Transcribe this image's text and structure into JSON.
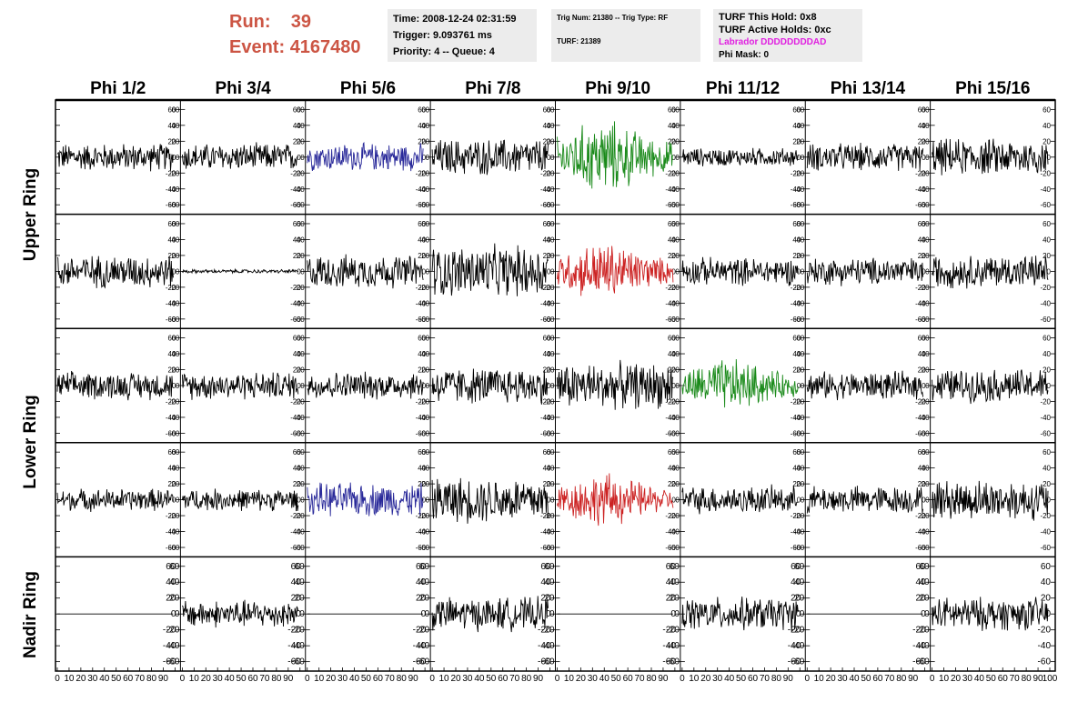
{
  "header": {
    "run_label": "Run:",
    "run_value": "39",
    "event_label": "Event:",
    "event_value": "4167480",
    "time_text": "Time: 2008-12-24 02:31:59",
    "trigger_text": "Trigger: 9.093761 ms",
    "priority_text": "Priority: 4 -- Queue: 4",
    "trig_num_text": "Trig Num: 21380 -- Trig Type: RF",
    "turf_text": "TURF: 21389",
    "turf_hold_text": "TURF This Hold: 0x8",
    "turf_active_text": "TURF Active Holds: 0xc",
    "labrador_text": "Labrador DDDDDDDDAD",
    "phi_mask_text": "Phi Mask: 0"
  },
  "columns": [
    "Phi 1/2",
    "Phi 3/4",
    "Phi 5/6",
    "Phi 7/8",
    "Phi 9/10",
    "Phi 11/12",
    "Phi 13/14",
    "Phi 15/16"
  ],
  "ring_labels": [
    "Upper Ring",
    "Lower Ring",
    "Nadir Ring"
  ],
  "y_ticks": [
    "60",
    "40",
    "20",
    "0",
    "-20",
    "-40",
    "-60"
  ],
  "x_ticks": [
    "0",
    "10",
    "20",
    "30",
    "40",
    "50",
    "60",
    "70",
    "80",
    "90",
    "100"
  ],
  "colors": {
    "accent_run": "#cc5544",
    "labrador": "#e020e0",
    "trace_default": "#000000",
    "trace_blue": "#2a2a9a",
    "trace_green": "#1a8a1a",
    "trace_red": "#cc2222"
  },
  "chart_data": {
    "type": "line",
    "xlim": [
      0,
      100
    ],
    "ylim": [
      -65,
      65
    ],
    "rows": [
      {
        "ring": "Upper Ring",
        "amplitudes": [
          15,
          15,
          15,
          20,
          28,
          10,
          15,
          20
        ],
        "colors": [
          "black",
          "black",
          "blue",
          "black",
          "green",
          "black",
          "black",
          "black"
        ]
      },
      {
        "ring": "Upper Ring",
        "amplitudes": [
          18,
          2,
          18,
          28,
          22,
          15,
          15,
          18
        ],
        "colors": [
          "black",
          "black",
          "black",
          "black",
          "red",
          "black",
          "black",
          "black"
        ]
      },
      {
        "ring": "Lower Ring",
        "amplitudes": [
          15,
          15,
          15,
          20,
          25,
          20,
          15,
          18
        ],
        "colors": [
          "black",
          "black",
          "black",
          "black",
          "black",
          "green",
          "black",
          "black"
        ]
      },
      {
        "ring": "Lower Ring",
        "amplitudes": [
          12,
          12,
          18,
          25,
          20,
          15,
          15,
          22
        ],
        "colors": [
          "black",
          "black",
          "blue",
          "black",
          "red",
          "black",
          "black",
          "black"
        ]
      },
      {
        "ring": "Nadir Ring",
        "amplitudes": [
          0,
          15,
          0,
          18,
          0,
          18,
          0,
          18
        ],
        "colors": [
          "black",
          "black",
          "black",
          "black",
          "black",
          "black",
          "black",
          "black"
        ]
      }
    ]
  }
}
